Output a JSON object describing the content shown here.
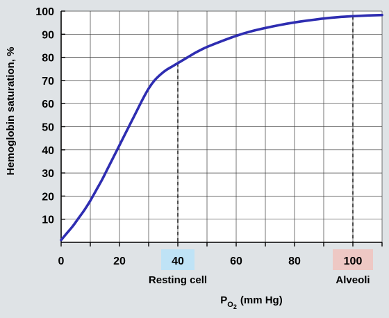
{
  "chart_data": {
    "type": "line",
    "title": "",
    "ylabel": "Hemoglobin saturation, %",
    "xlabel": {
      "main": "P",
      "sub": "O",
      "subsub": "2",
      "units": "(mm Hg)"
    },
    "xlim": [
      0,
      110
    ],
    "ylim": [
      0,
      100
    ],
    "x_tick_labels": [
      "0",
      "20",
      "40",
      "60",
      "80",
      "100"
    ],
    "y_tick_labels": [
      "10",
      "20",
      "30",
      "40",
      "50",
      "60",
      "70",
      "80",
      "90",
      "100"
    ],
    "grid": true,
    "series": [
      {
        "color": "#2e2db1",
        "x": [
          0,
          2,
          4,
          6,
          8,
          10,
          12,
          14,
          16,
          18,
          20,
          22,
          24,
          26,
          28,
          30,
          32,
          34,
          36,
          38,
          40,
          42,
          44,
          46,
          48,
          50,
          55,
          60,
          65,
          70,
          75,
          80,
          85,
          90,
          95,
          100,
          105,
          110
        ],
        "y": [
          1,
          4,
          7,
          10.5,
          14,
          18,
          22.5,
          27,
          32,
          37,
          42,
          47,
          52,
          57,
          62,
          66.5,
          70,
          72.5,
          74.5,
          76,
          77.5,
          79,
          80.5,
          82,
          83.3,
          84.5,
          87,
          89.3,
          91.2,
          92.7,
          94,
          95.1,
          96,
          96.8,
          97.4,
          97.8,
          98.1,
          98.3
        ]
      }
    ],
    "annotations": [
      {
        "x": 40,
        "y": 77.5,
        "tick_label": "40",
        "label": "Resting cell",
        "highlight": "#bfe3f6"
      },
      {
        "x": 100,
        "y": 97.8,
        "tick_label": "100",
        "label": "Alveoli",
        "highlight": "#eec8c4"
      }
    ]
  }
}
